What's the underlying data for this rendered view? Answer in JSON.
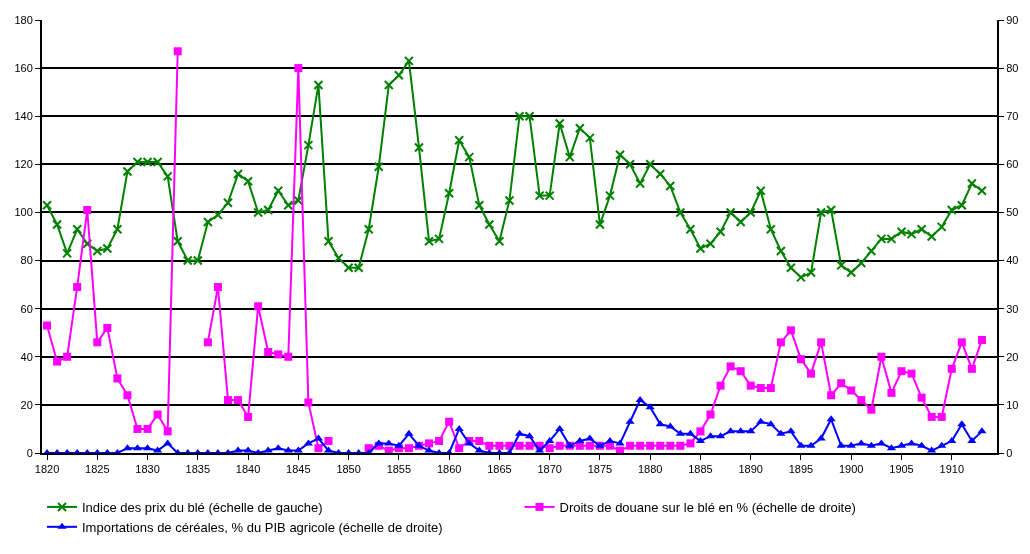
{
  "chart_data": {
    "type": "line",
    "x": [
      1820,
      1821,
      1822,
      1823,
      1824,
      1825,
      1826,
      1827,
      1828,
      1829,
      1830,
      1831,
      1832,
      1833,
      1834,
      1835,
      1836,
      1837,
      1838,
      1839,
      1840,
      1841,
      1842,
      1843,
      1844,
      1845,
      1846,
      1847,
      1848,
      1849,
      1850,
      1851,
      1852,
      1853,
      1854,
      1855,
      1856,
      1857,
      1858,
      1859,
      1860,
      1861,
      1862,
      1863,
      1864,
      1865,
      1866,
      1867,
      1868,
      1869,
      1870,
      1871,
      1872,
      1873,
      1874,
      1875,
      1876,
      1877,
      1878,
      1879,
      1880,
      1881,
      1882,
      1883,
      1884,
      1885,
      1886,
      1887,
      1888,
      1889,
      1890,
      1891,
      1892,
      1893,
      1894,
      1895,
      1896,
      1897,
      1898,
      1899,
      1900,
      1901,
      1902,
      1903,
      1904,
      1905,
      1906,
      1907,
      1908,
      1909,
      1910,
      1911,
      1912,
      1913
    ],
    "series": [
      {
        "name": "Indice des prix du blé (échelle de gauche)",
        "color": "#008000",
        "marker": "cross",
        "values": [
          103,
          95,
          83,
          93,
          87,
          84,
          85,
          93,
          117,
          121,
          121,
          121,
          115,
          88,
          80,
          80,
          96,
          99,
          104,
          116,
          113,
          100,
          101,
          109,
          103,
          105,
          128,
          153,
          88,
          81,
          77,
          77,
          93,
          119,
          153,
          157,
          163,
          127,
          88,
          89,
          108,
          130,
          123,
          103,
          95,
          88,
          105,
          140,
          140,
          107,
          107,
          137,
          123,
          135,
          131,
          95,
          107,
          124,
          120,
          112,
          120,
          116,
          111,
          100,
          93,
          85,
          87,
          92,
          100,
          96,
          100,
          109,
          93,
          84,
          77,
          73,
          75,
          100,
          101,
          78,
          75,
          79,
          84,
          89,
          89,
          92,
          91,
          93,
          90,
          94,
          101,
          103,
          112,
          109
        ]
      },
      {
        "name": "Droits de douane sur le blé en % (échelle de droite)",
        "color": "#ff00ff",
        "marker": "square",
        "axis": "y2",
        "values": [
          26.5,
          19,
          20,
          34.5,
          50.5,
          23,
          26,
          15.5,
          12,
          5,
          5,
          8,
          4.5,
          83.5,
          null,
          null,
          23,
          34.5,
          11,
          11,
          7.5,
          30.5,
          21,
          20.5,
          20,
          80,
          10.5,
          1,
          2.5,
          null,
          null,
          null,
          1,
          1.5,
          0.5,
          1,
          1,
          1.5,
          2,
          2.5,
          6.5,
          1,
          2.5,
          2.5,
          1.5,
          1.5,
          1.5,
          1.5,
          1.5,
          1.5,
          1,
          1.5,
          1.5,
          1.5,
          1.5,
          1.5,
          1.5,
          0.5,
          1.5,
          1.5,
          1.5,
          1.5,
          1.5,
          1.5,
          2,
          4.5,
          8,
          14,
          18,
          17,
          14,
          13.5,
          13.5,
          23,
          25.5,
          19.5,
          16.5,
          23,
          12,
          14.5,
          13,
          11,
          9,
          20,
          12.5,
          17,
          16.5,
          11.5,
          7.5,
          7.5,
          17.5,
          23,
          17.5,
          23.5
        ]
      },
      {
        "name": "Importations de céréales, % du PIB agricole (échelle de droite)",
        "color": "#0000ff",
        "marker": "triangle",
        "axis": "y2",
        "values": [
          0,
          0,
          0,
          0,
          0,
          0,
          0,
          0,
          1,
          1,
          1,
          0.5,
          2,
          0,
          0,
          0,
          0,
          0,
          0,
          0.5,
          0.5,
          0,
          0.5,
          1,
          0.5,
          0.5,
          2,
          3,
          0.5,
          0,
          0,
          0,
          0,
          2,
          2,
          1.5,
          4,
          1.5,
          0.5,
          0,
          0,
          5,
          2,
          0.5,
          0,
          0,
          0,
          4,
          3.5,
          0.5,
          2.5,
          5,
          1.5,
          2.5,
          3,
          1.5,
          2.5,
          2,
          6.5,
          11,
          9.5,
          6,
          5.5,
          4,
          4,
          2.5,
          3.5,
          3.5,
          4.5,
          4.5,
          4.5,
          6.5,
          6,
          4,
          4.5,
          1.5,
          1.5,
          3,
          7,
          1.5,
          1.5,
          2,
          1.5,
          2,
          1,
          1.5,
          2,
          1.5,
          0.5,
          1.5,
          2.5,
          6,
          2.5,
          4.5
        ]
      }
    ],
    "xlim": [
      1819.5,
      1914.5
    ],
    "xticks": [
      1820,
      1825,
      1830,
      1835,
      1840,
      1845,
      1850,
      1855,
      1860,
      1865,
      1870,
      1875,
      1880,
      1885,
      1890,
      1895,
      1900,
      1905,
      1910
    ],
    "ylim": [
      0,
      180
    ],
    "yticks": [
      0,
      20,
      40,
      60,
      80,
      100,
      120,
      140,
      160,
      180
    ],
    "y2lim": [
      0,
      90
    ],
    "y2ticks": [
      0,
      10,
      20,
      30,
      40,
      50,
      60,
      70,
      80,
      90
    ],
    "grid": "y",
    "legend": "bottom",
    "line_style": "solid"
  }
}
